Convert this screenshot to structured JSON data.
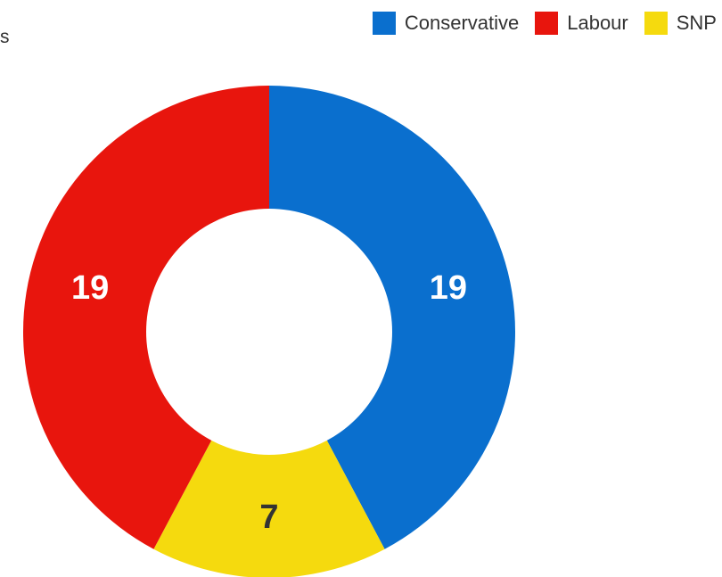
{
  "header": {
    "title": "",
    "subtitle": "Ps"
  },
  "chart_data": {
    "type": "pie",
    "donut": true,
    "title": "",
    "legend": "top-right",
    "categories": [
      "Conservative",
      "Labour",
      "SNP"
    ],
    "values": [
      19,
      19,
      7
    ],
    "labels": [
      "19",
      "19",
      "7"
    ],
    "colors": [
      "#0a6fce",
      "#e8150d",
      "#f5da0e"
    ],
    "label_colors": [
      "#ffffff",
      "#ffffff",
      "#333333"
    ],
    "slice_order": [
      "Conservative",
      "SNP",
      "Labour"
    ],
    "start": "top",
    "direction": "clockwise"
  }
}
